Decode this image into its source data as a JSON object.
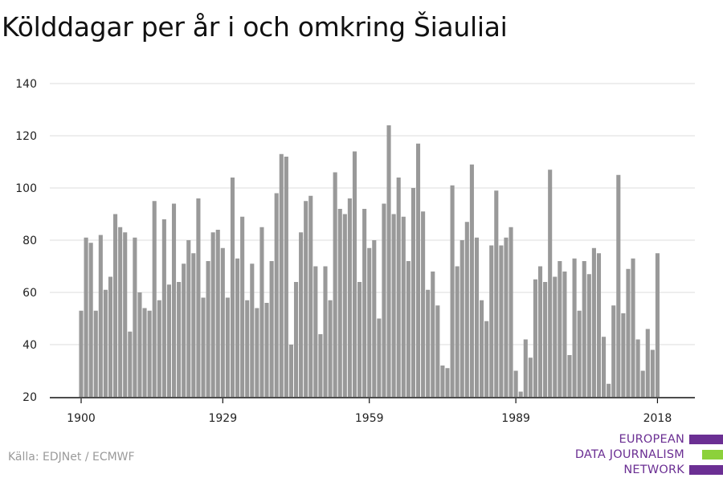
{
  "chart_data": {
    "type": "bar",
    "title": "Kölddagar per år i och omkring Šiauliai",
    "x": [
      1900,
      1901,
      1902,
      1903,
      1904,
      1905,
      1906,
      1907,
      1908,
      1909,
      1910,
      1911,
      1912,
      1913,
      1914,
      1915,
      1916,
      1917,
      1918,
      1919,
      1920,
      1921,
      1922,
      1923,
      1924,
      1925,
      1926,
      1927,
      1928,
      1929,
      1930,
      1931,
      1932,
      1933,
      1934,
      1935,
      1936,
      1937,
      1938,
      1939,
      1940,
      1941,
      1942,
      1943,
      1944,
      1945,
      1946,
      1947,
      1948,
      1949,
      1950,
      1951,
      1952,
      1953,
      1954,
      1955,
      1956,
      1957,
      1958,
      1959,
      1960,
      1961,
      1962,
      1963,
      1964,
      1965,
      1966,
      1967,
      1968,
      1969,
      1970,
      1971,
      1972,
      1973,
      1974,
      1975,
      1976,
      1977,
      1978,
      1979,
      1980,
      1981,
      1982,
      1983,
      1984,
      1985,
      1986,
      1987,
      1988,
      1989,
      1990,
      1991,
      1992,
      1993,
      1994,
      1995,
      1996,
      1997,
      1998,
      1999,
      2000,
      2001,
      2002,
      2003,
      2004,
      2005,
      2006,
      2007,
      2008,
      2009,
      2010,
      2011,
      2012,
      2013,
      2014,
      2015,
      2016,
      2017,
      2018
    ],
    "values": [
      53,
      81,
      79,
      53,
      82,
      61,
      66,
      90,
      85,
      83,
      45,
      81,
      60,
      54,
      53,
      95,
      57,
      88,
      63,
      94,
      64,
      71,
      80,
      75,
      96,
      58,
      72,
      83,
      84,
      77,
      58,
      104,
      73,
      89,
      57,
      71,
      54,
      85,
      56,
      72,
      98,
      113,
      112,
      40,
      64,
      83,
      95,
      97,
      70,
      44,
      70,
      57,
      106,
      92,
      90,
      96,
      114,
      64,
      92,
      77,
      80,
      50,
      94,
      124,
      90,
      104,
      89,
      72,
      100,
      117,
      91,
      61,
      68,
      55,
      32,
      31,
      101,
      70,
      80,
      87,
      109,
      81,
      57,
      49,
      78,
      99,
      78,
      81,
      85,
      30,
      22,
      42,
      35,
      65,
      70,
      64,
      107,
      66,
      72,
      68,
      36,
      73,
      53,
      72,
      67,
      77,
      75,
      43,
      25,
      55,
      105,
      52,
      69,
      73,
      42,
      30,
      46,
      38,
      75
    ],
    "ylim": [
      20,
      140
    ],
    "yticks": [
      20,
      40,
      60,
      80,
      100,
      120,
      140
    ],
    "xticks": [
      1900,
      1929,
      1959,
      1989,
      2018
    ],
    "xlabel": "",
    "ylabel": "",
    "grid": true,
    "bar_color": "#999999"
  },
  "source": "Källa: EDJNet / ECMWF",
  "logo": {
    "lines": [
      "EUROPEAN",
      "DATA JOURNALISM",
      "NETWORK"
    ],
    "colors": [
      "#6b2f93",
      "#8cd13b",
      "#6b2f93"
    ]
  }
}
